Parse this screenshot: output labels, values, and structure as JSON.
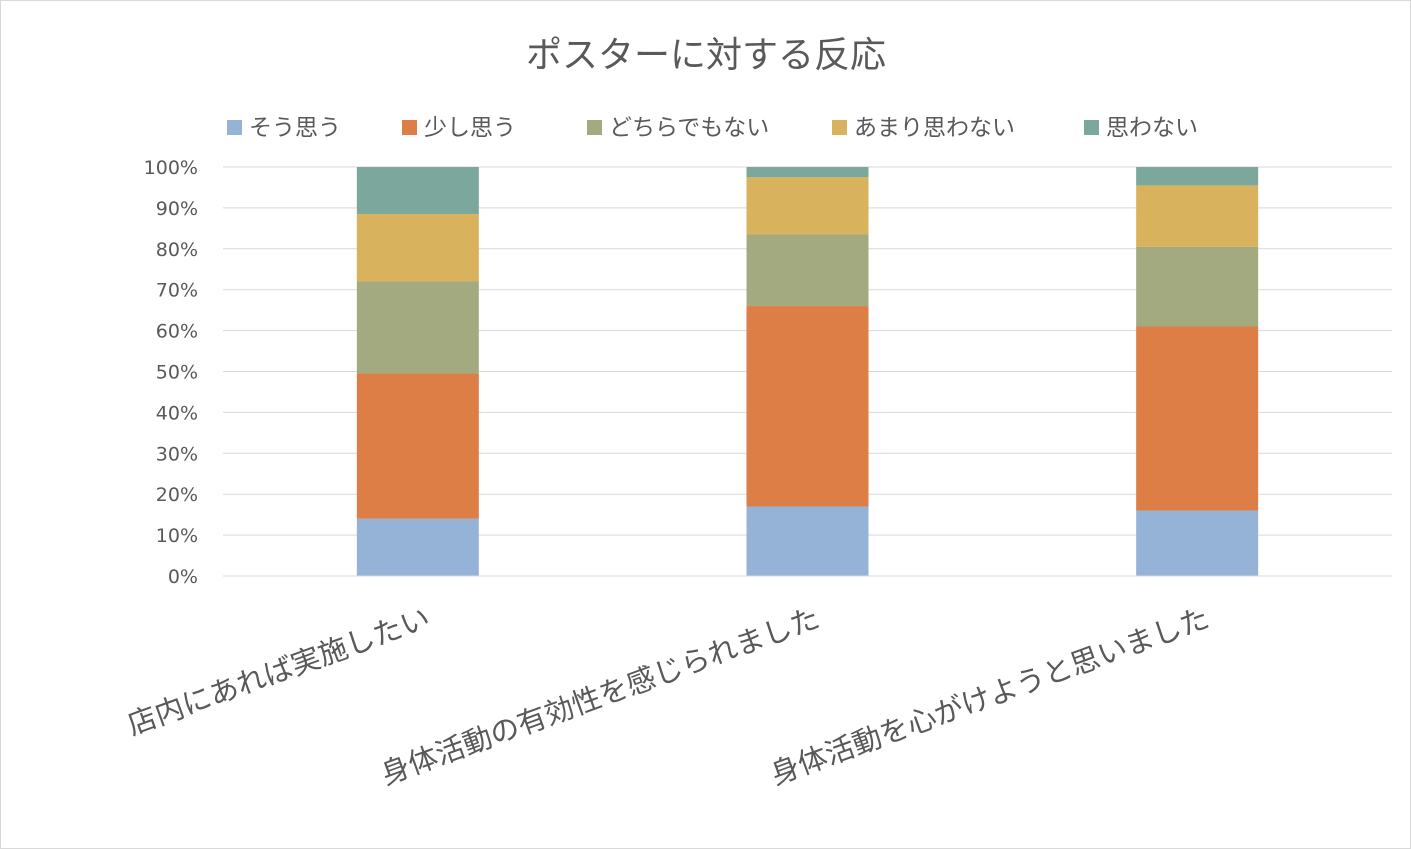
{
  "chart_data": {
    "type": "bar",
    "stacked": true,
    "percent": true,
    "title": "ポスターに対する反応",
    "categories": [
      "店内にあれば実施したい",
      "身体活動の有効性を感じられました",
      "身体活動を心がけようと思いました"
    ],
    "series": [
      {
        "name": "そう思う",
        "color": "#95b3d7",
        "values": [
          14,
          17,
          16
        ]
      },
      {
        "name": "少し思う",
        "color": "#dd7e47",
        "values": [
          35.5,
          49,
          45
        ]
      },
      {
        "name": "どちらでもない",
        "color": "#a4aa7f",
        "values": [
          22.5,
          17.5,
          19.5
        ]
      },
      {
        "name": "あまり思わない",
        "color": "#d9b25e",
        "values": [
          16.5,
          14,
          15
        ]
      },
      {
        "name": "思わない",
        "color": "#7ba79c",
        "values": [
          11.5,
          2.5,
          4.5
        ]
      }
    ],
    "y_ticks": [
      "0%",
      "10%",
      "20%",
      "30%",
      "40%",
      "50%",
      "60%",
      "70%",
      "80%",
      "90%",
      "100%"
    ],
    "ylim": [
      0,
      100
    ],
    "grid": true,
    "legend": "top"
  }
}
